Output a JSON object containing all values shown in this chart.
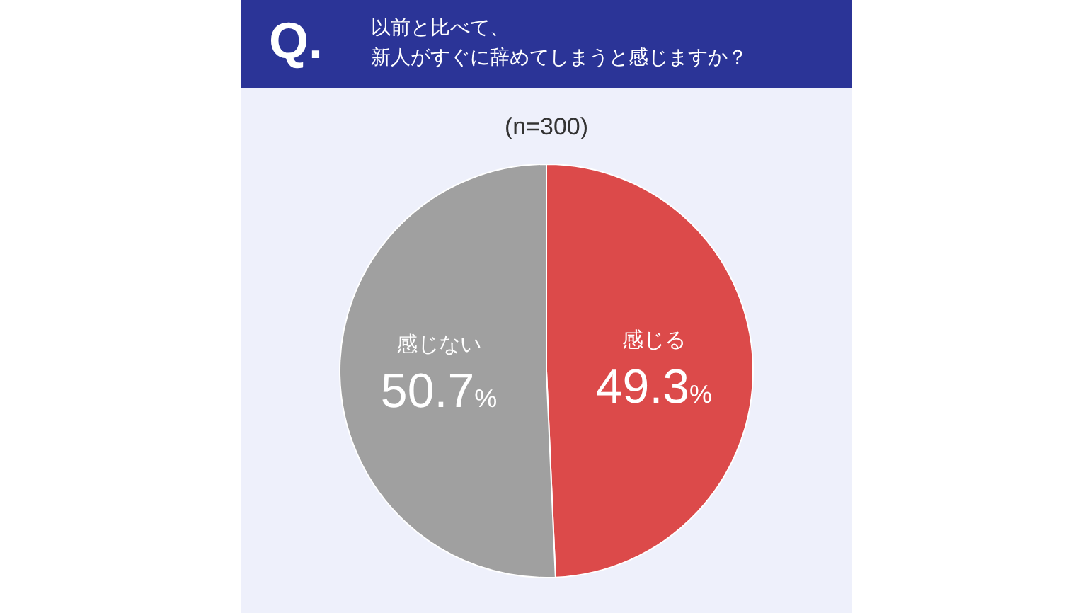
{
  "chart_data": {
    "type": "pie",
    "title": "以前と比べて、新人がすぐに辞めてしまうと感じますか？",
    "subtitle": "(n=300)",
    "annotations": [
      "Q."
    ],
    "categories": [
      "感じる",
      "感じない"
    ],
    "values": [
      49.3,
      50.7
    ],
    "colors": [
      "#dc4a4a",
      "#a0a0a0"
    ],
    "value_labels": [
      "49.3%",
      "50.7%"
    ],
    "legend": false
  }
}
